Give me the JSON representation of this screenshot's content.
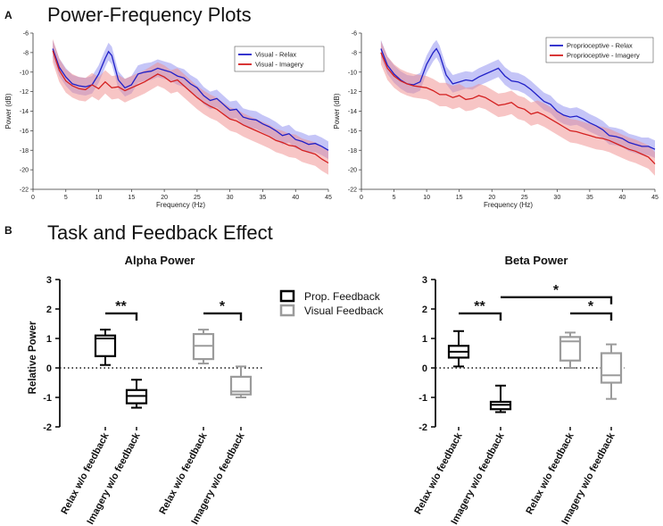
{
  "colors": {
    "relax": "#2020c8",
    "imagery": "#d42020",
    "relax_band": "#8c8cf0",
    "imagery_band": "#f08c8c",
    "prop_box": "#000000",
    "visual_box": "#9b9b9b"
  },
  "panel_a": {
    "label": "A",
    "heading": "Power-Frequency Plots"
  },
  "panel_b": {
    "label": "B",
    "heading": "Task and Feedback Effect",
    "legend": [
      "Prop. Feedback",
      "Visual Feedback"
    ]
  },
  "chart_data": [
    {
      "type": "line",
      "xlabel": "Frequency (Hz)",
      "ylabel": "Power (dB)",
      "xlim": [
        0,
        45
      ],
      "ylim": [
        -22,
        -6
      ],
      "xticks": [
        0,
        5,
        10,
        15,
        20,
        25,
        30,
        35,
        40,
        45
      ],
      "yticks": [
        -6,
        -8,
        -10,
        -12,
        -14,
        -16,
        -18,
        -20,
        -22
      ],
      "series": [
        {
          "name": "Visual - Relax",
          "color": "#2020c8",
          "band": 0.9,
          "x": [
            3,
            4,
            5,
            6,
            7,
            8,
            9,
            10,
            11,
            11.5,
            12,
            13,
            14,
            15,
            16,
            17,
            18,
            19,
            20,
            21,
            22,
            23,
            24,
            25,
            26,
            27,
            28,
            29,
            30,
            31,
            32,
            33,
            34,
            35,
            36,
            37,
            38,
            39,
            40,
            41,
            42,
            43,
            44,
            45
          ],
          "y": [
            -7.6,
            -9.5,
            -10.5,
            -11.2,
            -11.4,
            -11.5,
            -11.3,
            -10.2,
            -8.6,
            -7.9,
            -8.3,
            -10.8,
            -11.6,
            -11.3,
            -10.2,
            -10.0,
            -9.9,
            -9.6,
            -9.8,
            -10.0,
            -10.4,
            -10.6,
            -11.2,
            -11.6,
            -12.4,
            -12.9,
            -12.7,
            -13.3,
            -13.9,
            -13.8,
            -14.6,
            -14.8,
            -14.9,
            -15.3,
            -15.6,
            -16.0,
            -16.5,
            -16.3,
            -16.9,
            -17.1,
            -17.4,
            -17.3,
            -17.6,
            -18.0
          ]
        },
        {
          "name": "Visual - Imagery",
          "color": "#d42020",
          "band": 1.2,
          "x": [
            3,
            4,
            5,
            6,
            7,
            8,
            9,
            10,
            11,
            12,
            13,
            14,
            15,
            16,
            17,
            18,
            19,
            20,
            21,
            22,
            23,
            24,
            25,
            26,
            27,
            28,
            29,
            30,
            31,
            32,
            33,
            34,
            35,
            36,
            37,
            38,
            39,
            40,
            41,
            42,
            43,
            44,
            45
          ],
          "y": [
            -7.8,
            -9.8,
            -10.9,
            -11.4,
            -11.7,
            -11.8,
            -11.3,
            -11.7,
            -11.0,
            -11.6,
            -11.5,
            -11.9,
            -11.6,
            -11.3,
            -11.0,
            -10.6,
            -10.2,
            -10.5,
            -11.0,
            -10.8,
            -11.4,
            -12.0,
            -12.6,
            -13.1,
            -13.5,
            -13.8,
            -14.3,
            -14.8,
            -15.0,
            -15.4,
            -15.7,
            -16.0,
            -16.3,
            -16.6,
            -17.0,
            -17.2,
            -17.5,
            -17.6,
            -18.0,
            -18.2,
            -18.4,
            -18.9,
            -19.3
          ]
        }
      ]
    },
    {
      "type": "line",
      "xlabel": "Frequency (Hz)",
      "ylabel": "Power (dB)",
      "xlim": [
        0,
        45
      ],
      "ylim": [
        -22,
        -6
      ],
      "xticks": [
        0,
        5,
        10,
        15,
        20,
        25,
        30,
        35,
        40,
        45
      ],
      "yticks": [
        -6,
        -8,
        -10,
        -12,
        -14,
        -16,
        -18,
        -20,
        -22
      ],
      "series": [
        {
          "name": "Proprioceptive - Relax",
          "color": "#2020c8",
          "band": 0.9,
          "x": [
            3,
            4,
            5,
            6,
            7,
            8,
            9,
            10,
            11,
            11.5,
            12,
            13,
            14,
            15,
            16,
            17,
            18,
            19,
            20,
            21,
            22,
            23,
            24,
            25,
            26,
            27,
            28,
            29,
            30,
            31,
            32,
            33,
            34,
            35,
            36,
            37,
            38,
            39,
            40,
            41,
            42,
            43,
            44,
            45
          ],
          "y": [
            -7.6,
            -9.3,
            -10.2,
            -10.8,
            -11.2,
            -11.3,
            -11.0,
            -9.2,
            -8.0,
            -7.6,
            -8.2,
            -10.3,
            -11.2,
            -11.0,
            -10.8,
            -10.9,
            -10.5,
            -10.2,
            -9.9,
            -9.6,
            -10.4,
            -10.9,
            -11.0,
            -11.3,
            -11.8,
            -12.4,
            -13.0,
            -13.3,
            -14.0,
            -14.4,
            -14.6,
            -14.5,
            -14.8,
            -15.2,
            -15.5,
            -15.9,
            -16.5,
            -16.6,
            -16.8,
            -17.2,
            -17.4,
            -17.6,
            -17.6,
            -17.9
          ]
        },
        {
          "name": "Proprioceptive - Imagery",
          "color": "#d42020",
          "band": 1.2,
          "x": [
            3,
            4,
            5,
            6,
            7,
            8,
            9,
            10,
            11,
            12,
            13,
            14,
            15,
            16,
            17,
            18,
            19,
            20,
            21,
            22,
            23,
            24,
            25,
            26,
            27,
            28,
            29,
            30,
            31,
            32,
            33,
            34,
            35,
            36,
            37,
            38,
            39,
            40,
            41,
            42,
            43,
            44,
            45
          ],
          "y": [
            -8.0,
            -9.6,
            -10.4,
            -10.9,
            -11.2,
            -11.4,
            -11.5,
            -11.6,
            -11.9,
            -12.3,
            -12.3,
            -12.6,
            -12.4,
            -12.8,
            -12.7,
            -12.4,
            -12.6,
            -13.0,
            -13.4,
            -13.3,
            -13.1,
            -13.6,
            -13.8,
            -14.3,
            -14.1,
            -14.4,
            -14.8,
            -15.2,
            -15.6,
            -16.0,
            -16.1,
            -16.3,
            -16.5,
            -16.7,
            -16.8,
            -17.0,
            -17.3,
            -17.6,
            -17.9,
            -18.1,
            -18.4,
            -18.7,
            -19.4
          ]
        }
      ]
    },
    {
      "type": "box",
      "title": "Alpha Power",
      "ylabel": "Relative Power",
      "ylim": [
        -2,
        3
      ],
      "yticks": [
        -2,
        -1,
        0,
        1,
        2,
        3
      ],
      "categories": [
        "Relax w/o feedback",
        "Imagery w/o feedback",
        "Relax w/o feedback",
        "Imagery w/o feedback"
      ],
      "series": [
        {
          "name": "Prop. Feedback",
          "boxes": [
            {
              "min": 0.1,
              "q1": 0.4,
              "median": 1.0,
              "q3": 1.1,
              "max": 1.3
            },
            {
              "min": -1.35,
              "q1": -1.2,
              "median": -0.95,
              "q3": -0.75,
              "max": -0.4
            }
          ]
        },
        {
          "name": "Visual Feedback",
          "boxes": [
            {
              "min": 0.15,
              "q1": 0.3,
              "median": 0.75,
              "q3": 1.15,
              "max": 1.3
            },
            {
              "min": -1.0,
              "q1": -0.9,
              "median": -0.8,
              "q3": -0.3,
              "max": 0.05
            }
          ]
        }
      ],
      "significance": [
        {
          "from": 0,
          "to": 1,
          "label": "**",
          "y": 1.85
        },
        {
          "from": 2,
          "to": 3,
          "label": "*",
          "y": 1.85
        }
      ]
    },
    {
      "type": "box",
      "title": "Beta Power",
      "ylabel": "",
      "ylim": [
        -2,
        3
      ],
      "yticks": [
        -2,
        -1,
        0,
        1,
        2,
        3
      ],
      "categories": [
        "Relax w/o feedback",
        "Imagery w/o feedback",
        "Relax w/o feedback",
        "Imagery w/o feedback"
      ],
      "series": [
        {
          "name": "Prop. Feedback",
          "boxes": [
            {
              "min": 0.05,
              "q1": 0.35,
              "median": 0.55,
              "q3": 0.75,
              "max": 1.25
            },
            {
              "min": -1.5,
              "q1": -1.4,
              "median": -1.25,
              "q3": -1.15,
              "max": -0.6
            }
          ]
        },
        {
          "name": "Visual Feedback",
          "boxes": [
            {
              "min": 0.0,
              "q1": 0.25,
              "median": 0.9,
              "q3": 1.05,
              "max": 1.2
            },
            {
              "min": -1.05,
              "q1": -0.5,
              "median": -0.25,
              "q3": 0.5,
              "max": 0.8
            }
          ]
        }
      ],
      "significance": [
        {
          "from": 0,
          "to": 1,
          "label": "**",
          "y": 1.85
        },
        {
          "from": 2,
          "to": 3,
          "label": "*",
          "y": 1.85
        },
        {
          "from": 1,
          "to": 3,
          "label": "*",
          "y": 2.4
        }
      ]
    }
  ]
}
